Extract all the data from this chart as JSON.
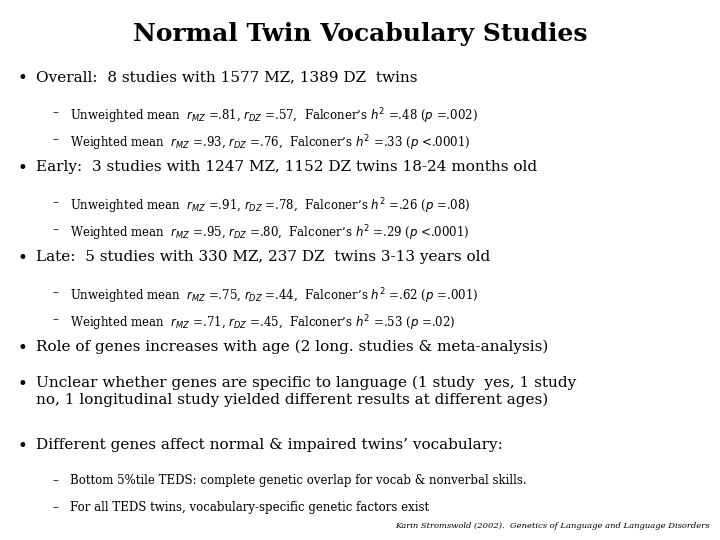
{
  "title": "Normal Twin Vocabulary Studies",
  "background_color": "#ffffff",
  "text_color": "#000000",
  "title_fontsize": 18,
  "body_fontsize": 11,
  "sub_fontsize": 8.5,
  "footer_fontsize": 6,
  "footer": "Karin Stromswold (2002).  Genetics of Language and Language Disorders",
  "content": [
    {
      "level": 0,
      "text": "Overall:  8 studies with 1577 MZ, 1389 DZ  twins"
    },
    {
      "level": 1,
      "text": "Unweighted mean  $r_{MZ}$ =.81, $r_{DZ}$ =.57,  Falconer’s $h^2$ =.48 ($p$ =.002)"
    },
    {
      "level": 1,
      "text": "Weighted mean  $r_{MZ}$ =.93, $r_{DZ}$ =.76,  Falconer’s $h^2$ =.33 ($p$ <.0001)"
    },
    {
      "level": 0,
      "text": "Early:  3 studies with 1247 MZ, 1152 DZ twins 18-24 months old"
    },
    {
      "level": 1,
      "text": "Unweighted mean  $r_{MZ}$ =.91, $r_{DZ}$ =.78,  Falconer’s $h^2$ =.26 ($p$ =.08)"
    },
    {
      "level": 1,
      "text": "Weighted mean  $r_{MZ}$ =.95, $r_{DZ}$ =.80,  Falconer’s $h^2$ =.29 ($p$ <.0001)"
    },
    {
      "level": 0,
      "text": "Late:  5 studies with 330 MZ, 237 DZ  twins 3-13 years old"
    },
    {
      "level": 1,
      "text": "Unweighted mean  $r_{MZ}$ =.75, $r_{DZ}$ =.44,  Falconer’s $h^2$ =.62 ($p$ =.001)"
    },
    {
      "level": 1,
      "text": "Weighted mean  $r_{MZ}$ =.71, $r_{DZ}$ =.45,  Falconer’s $h^2$ =.53 ($p$ =.02)"
    },
    {
      "level": 0,
      "text": "Role of genes increases with age (2 long. studies & meta-analysis)"
    },
    {
      "level": 0,
      "text": "Unclear whether genes are specific to language (1 study  yes, 1 study\nno, 1 longitudinal study yielded different results at different ages)"
    },
    {
      "level": 0,
      "text": "Different genes affect normal & impaired twins’ vocabulary:"
    },
    {
      "level": 1,
      "text": "Bottom 5%tile TEDS: complete genetic overlap for vocab & nonverbal skills."
    },
    {
      "level": 1,
      "text": "For all TEDS twins, vocabulary-specific genetic factors exist"
    }
  ]
}
